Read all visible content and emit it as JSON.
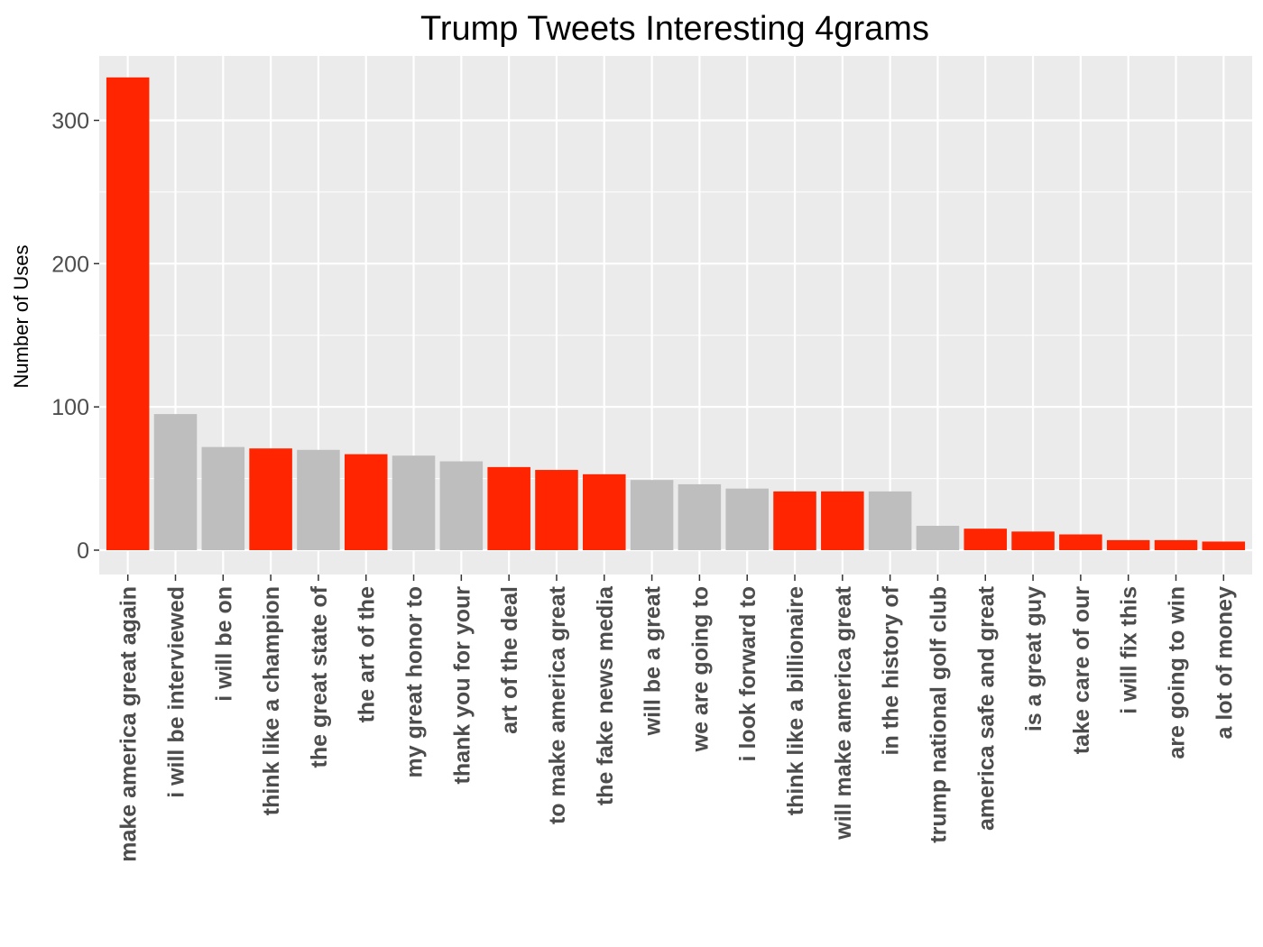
{
  "chart_data": {
    "type": "bar",
    "title": "Trump Tweets Interesting 4grams",
    "xlabel": "",
    "ylabel": "Number of Uses",
    "ylim": [
      -17,
      345
    ],
    "yticks": [
      0,
      100,
      200,
      300
    ],
    "grid": true,
    "legend": "none",
    "categories": [
      "make america great again",
      "i will be interviewed",
      "i will be on",
      "think like a champion",
      "the great state of",
      "the art of the",
      "my great honor to",
      "thank you for your",
      "art of the deal",
      "to make america great",
      "the fake news media",
      "will be a great",
      "we are going to",
      "i look forward to",
      "think like a billionaire",
      "will make america great",
      "in the history of",
      "trump national golf club",
      "america safe and great",
      "is a great guy",
      "take care of our",
      "i will fix this",
      "are going to win",
      "a lot of money"
    ],
    "values": [
      330,
      95,
      72,
      71,
      70,
      67,
      66,
      62,
      58,
      56,
      53,
      49,
      46,
      43,
      41,
      41,
      41,
      17,
      15,
      13,
      11,
      7,
      7,
      6
    ],
    "bar_colors": [
      "#ff2500",
      "#bebebe",
      "#bebebe",
      "#ff2500",
      "#bebebe",
      "#ff2500",
      "#bebebe",
      "#bebebe",
      "#ff2500",
      "#ff2500",
      "#ff2500",
      "#bebebe",
      "#bebebe",
      "#bebebe",
      "#ff2500",
      "#ff2500",
      "#bebebe",
      "#bebebe",
      "#ff2500",
      "#ff2500",
      "#ff2500",
      "#ff2500",
      "#ff2500",
      "#ff2500"
    ]
  },
  "colors": {
    "highlight": "#ff2500",
    "default": "#bebebe",
    "panel_background": "#ebebeb",
    "grid": "#ffffff",
    "tick_text": "#4d4d4d"
  }
}
